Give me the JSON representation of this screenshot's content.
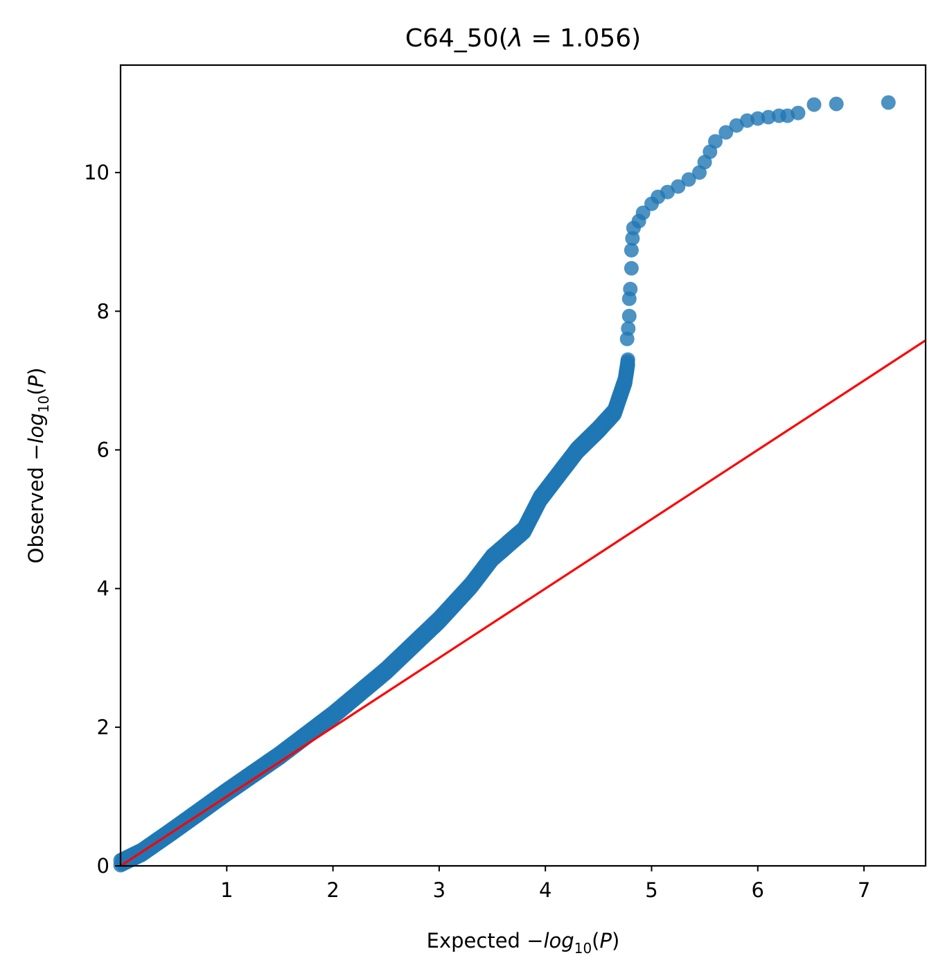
{
  "chart_data": {
    "type": "scatter",
    "title": {
      "text": "C64_50(",
      "lambda_symbol": "λ",
      "equals": " = ",
      "lambda_value": "1.056",
      "close": ")"
    },
    "xlabel": {
      "prefix": "Expected ",
      "minus": "−",
      "log": "log",
      "sub": "10",
      "arg_open": "(",
      "arg": "P",
      "arg_close": ")"
    },
    "ylabel": {
      "prefix": "Observed ",
      "minus": "−",
      "log": "log",
      "sub": "10",
      "arg_open": "(",
      "arg": "P",
      "arg_close": ")"
    },
    "xlim": [
      0,
      7.58
    ],
    "ylim": [
      0,
      11.55
    ],
    "x_ticks": [
      "1",
      "2",
      "3",
      "4",
      "5",
      "6",
      "7"
    ],
    "y_ticks": [
      "0",
      "2",
      "4",
      "6",
      "8",
      "10"
    ],
    "grid": false,
    "series": [
      {
        "color": "#1f77b4",
        "dense_curve": [
          [
            0.0,
            0.05
          ],
          [
            0.2,
            0.2
          ],
          [
            0.5,
            0.52
          ],
          [
            1.0,
            1.07
          ],
          [
            1.5,
            1.6
          ],
          [
            2.0,
            2.18
          ],
          [
            2.5,
            2.82
          ],
          [
            3.0,
            3.55
          ],
          [
            3.3,
            4.05
          ],
          [
            3.5,
            4.45
          ],
          [
            3.8,
            4.85
          ],
          [
            3.95,
            5.3
          ],
          [
            4.1,
            5.6
          ],
          [
            4.3,
            6.0
          ],
          [
            4.5,
            6.3
          ],
          [
            4.65,
            6.55
          ],
          [
            4.75,
            7.0
          ],
          [
            4.78,
            7.3
          ]
        ],
        "points": [
          [
            4.77,
            7.6
          ],
          [
            4.78,
            7.75
          ],
          [
            4.79,
            7.93
          ],
          [
            4.79,
            8.18
          ],
          [
            4.8,
            8.32
          ],
          [
            4.81,
            8.62
          ],
          [
            4.81,
            8.88
          ],
          [
            4.82,
            9.05
          ],
          [
            4.83,
            9.2
          ],
          [
            4.88,
            9.3
          ],
          [
            4.92,
            9.42
          ],
          [
            5.0,
            9.55
          ],
          [
            5.06,
            9.65
          ],
          [
            5.15,
            9.72
          ],
          [
            5.25,
            9.8
          ],
          [
            5.35,
            9.9
          ],
          [
            5.45,
            10.0
          ],
          [
            5.5,
            10.15
          ],
          [
            5.55,
            10.3
          ],
          [
            5.6,
            10.45
          ],
          [
            5.7,
            10.58
          ],
          [
            5.8,
            10.68
          ],
          [
            5.9,
            10.75
          ],
          [
            6.0,
            10.78
          ],
          [
            6.1,
            10.8
          ],
          [
            6.2,
            10.82
          ],
          [
            6.28,
            10.82
          ],
          [
            6.38,
            10.86
          ],
          [
            6.53,
            10.98
          ],
          [
            6.74,
            10.99
          ],
          [
            7.23,
            11.01
          ]
        ]
      }
    ],
    "reference_line": {
      "color": "#ff0000",
      "from": [
        0,
        0
      ],
      "to": [
        7.58,
        7.58
      ]
    }
  }
}
